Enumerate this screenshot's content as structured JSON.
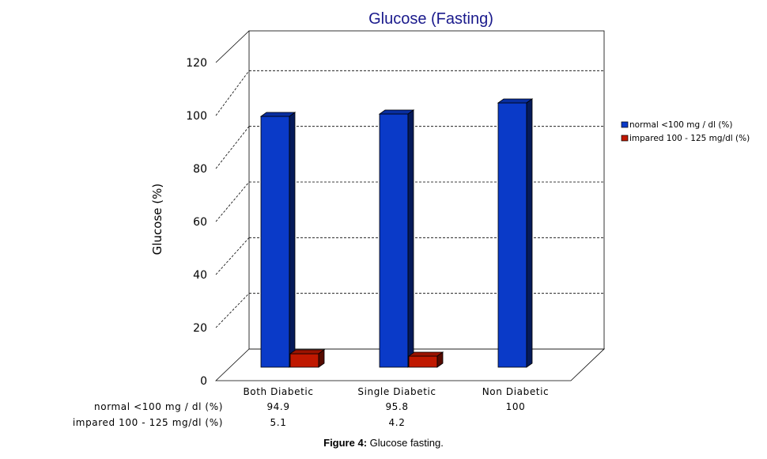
{
  "chart_data": {
    "type": "bar",
    "title": "Glucose (Fasting)",
    "ylabel": "Glucose (%)",
    "xlabel": "",
    "ylim": [
      0,
      120
    ],
    "yticks": [
      "0",
      "20",
      "40",
      "60",
      "80",
      "100",
      "120"
    ],
    "categories": [
      "Both Diabetic",
      "Single Diabetic",
      "Non Diabetic"
    ],
    "series": [
      {
        "name": "normal <100 mg / dl (%)",
        "table_label": "normal <100 mg / dl (%)",
        "values": [
          94.9,
          95.8,
          100
        ],
        "value_labels": [
          "94.9",
          "95.8",
          "100"
        ],
        "color": "#0a3ac8"
      },
      {
        "name": "impared 100 - 125 mg/dl (%)",
        "table_label": "impared 100 - 125 mg/dl (%)",
        "values": [
          5.1,
          4.2,
          0
        ],
        "value_labels": [
          "5.1",
          "4.2",
          ""
        ],
        "color": "#c01800"
      }
    ],
    "grid": true,
    "legend_position": "right",
    "style": "3d"
  },
  "caption": {
    "label": "Figure 4:",
    "text": " Glucose fasting."
  }
}
